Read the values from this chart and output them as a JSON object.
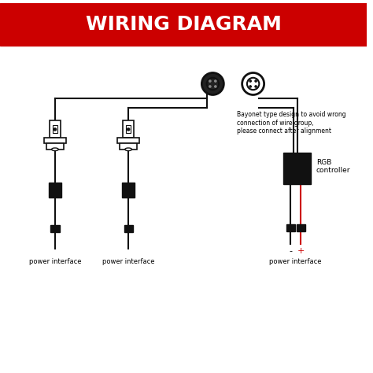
{
  "title": "WIRING DIAGRAM",
  "title_bg": "#cc0000",
  "title_color": "#ffffff",
  "bg_color": "#ffffff",
  "annotation_text": "Bayonet type design to avoid wrong\nconnection of wire group,\nplease connect after alignment",
  "rgb_label": "RGB\ncontroller",
  "power_label": "power interface",
  "minus_plus": "- +",
  "wire_color_black": "#111111",
  "wire_color_red": "#cc0000",
  "connector_fill": "#111111",
  "box_fill": "#111111"
}
